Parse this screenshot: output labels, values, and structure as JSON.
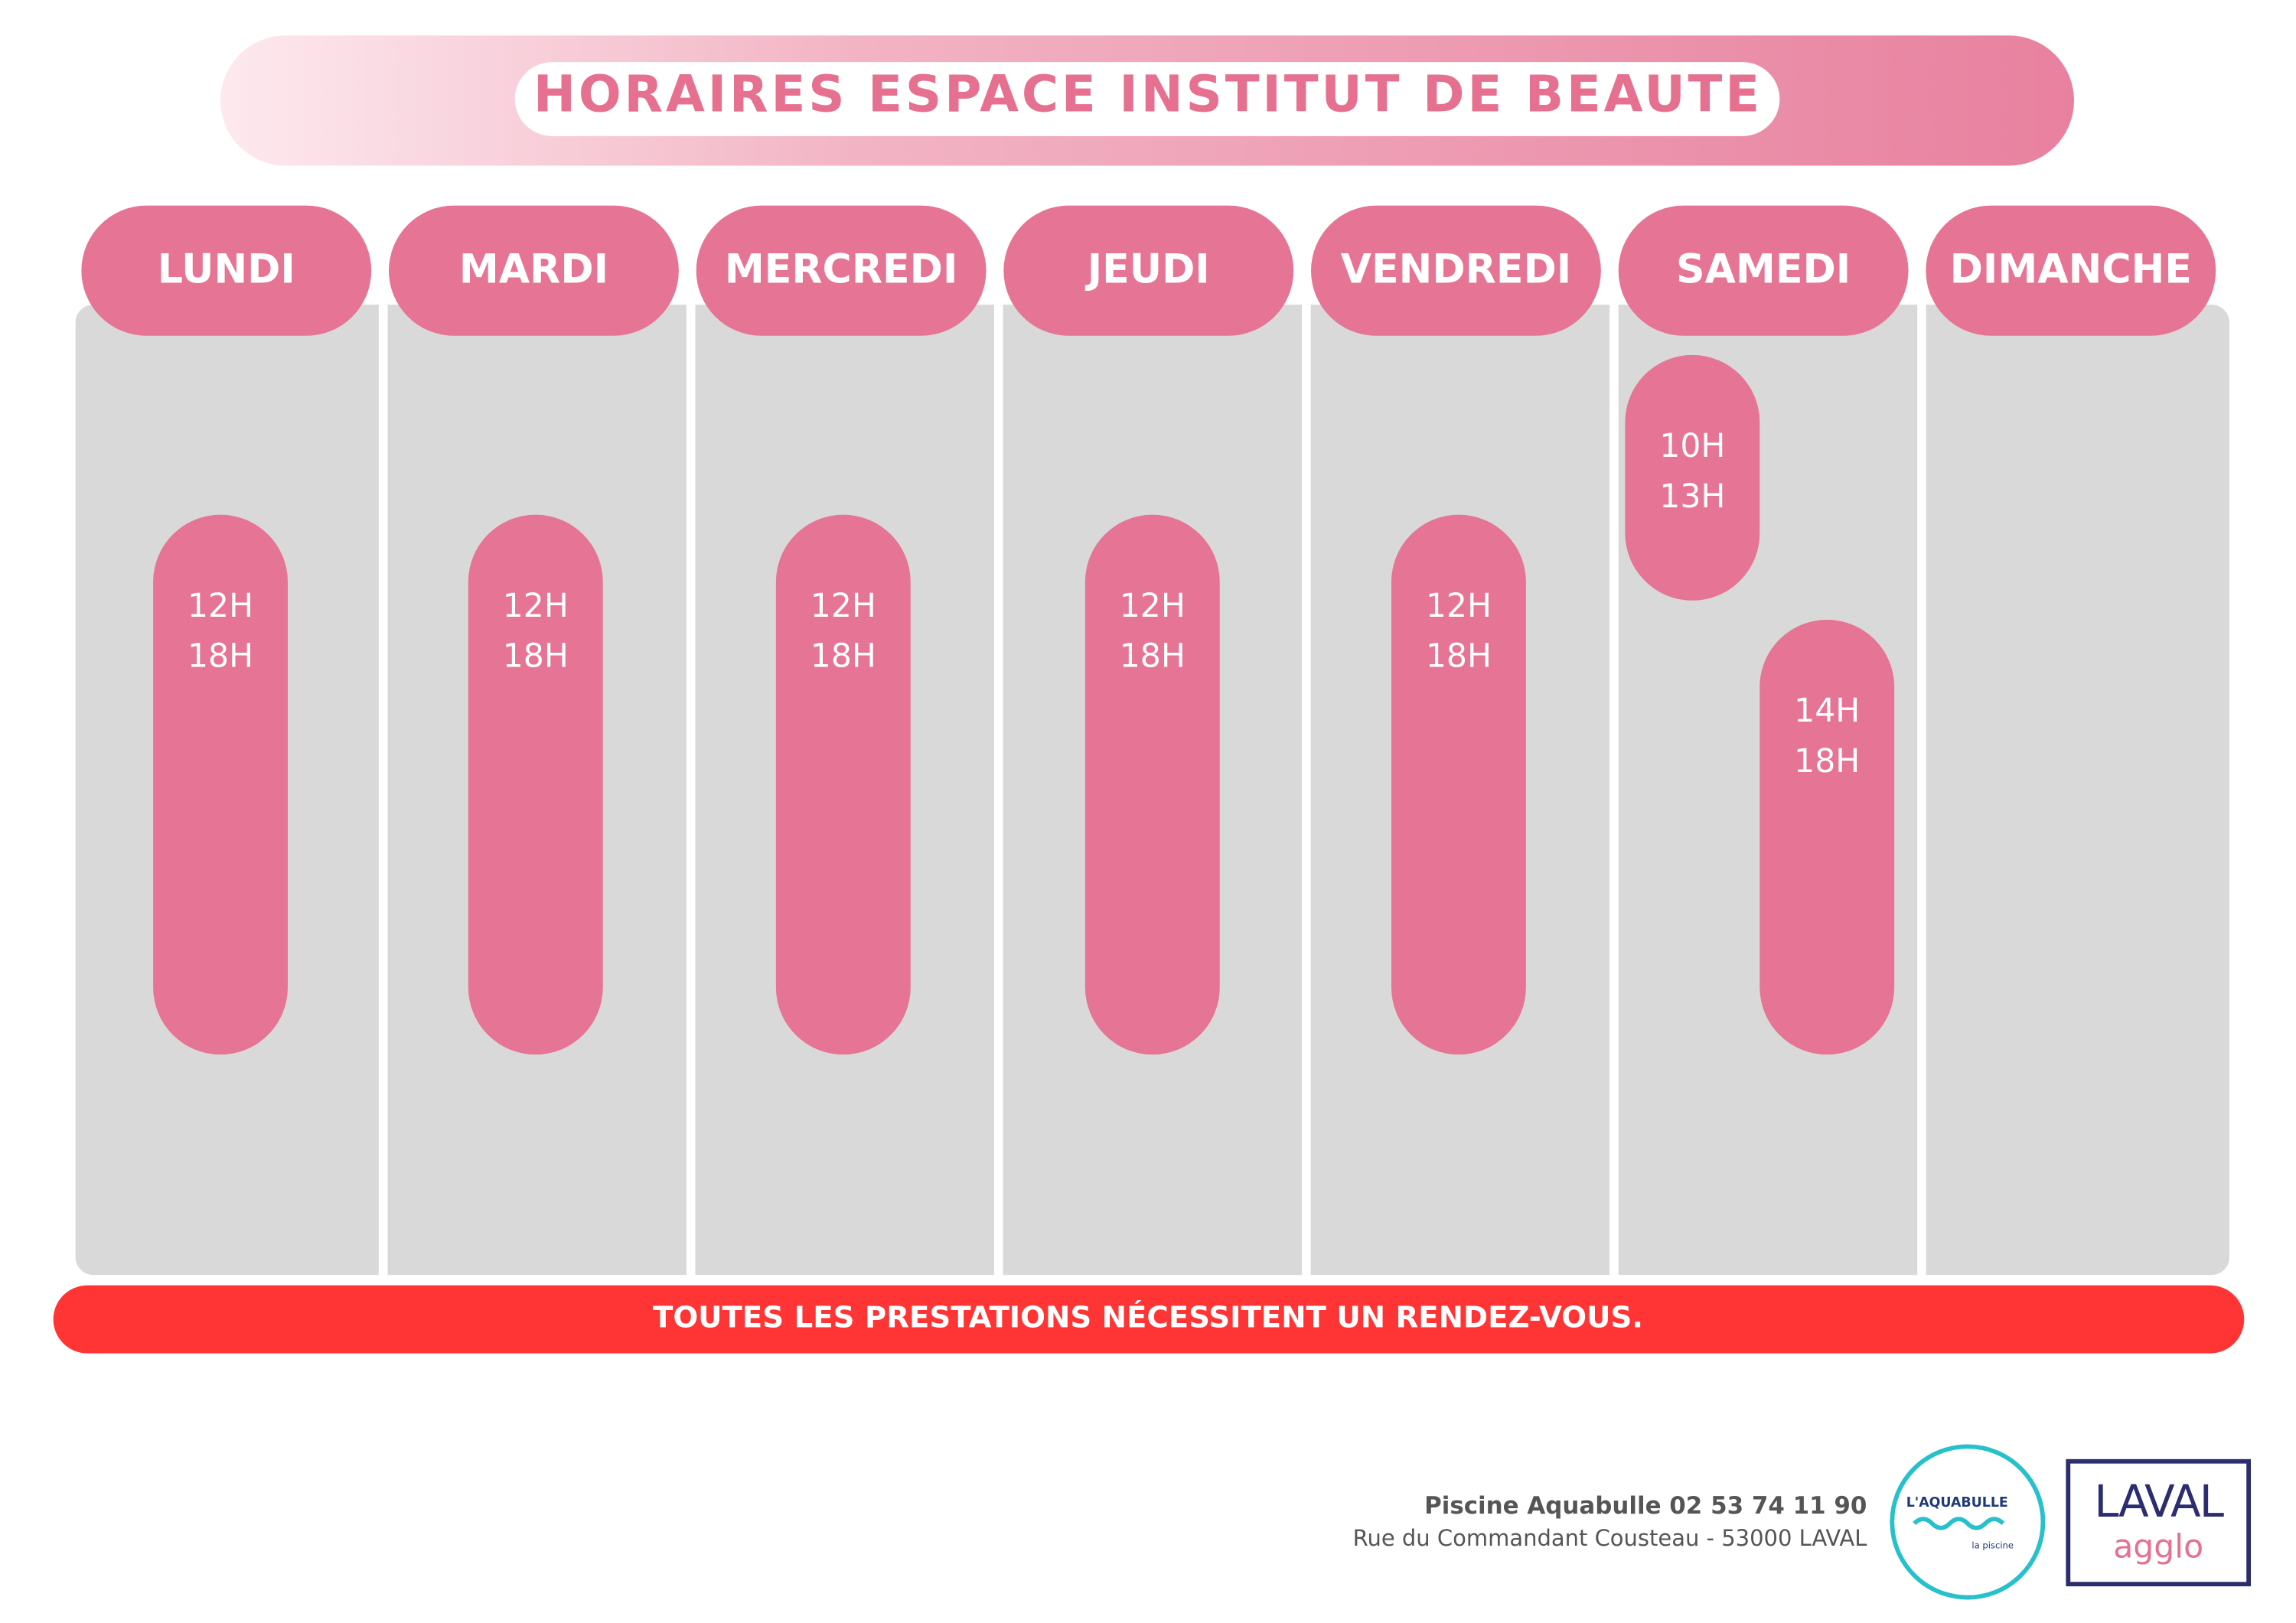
{
  "header": {
    "title": "HORAIRES ESPACE INSTITUT DE BEAUTE"
  },
  "days": [
    {
      "name": "LUNDI",
      "slots": [
        {
          "start": "12H",
          "end": "18H"
        }
      ]
    },
    {
      "name": "MARDI",
      "slots": [
        {
          "start": "12H",
          "end": "18H"
        }
      ]
    },
    {
      "name": "MERCREDI",
      "slots": [
        {
          "start": "12H",
          "end": "18H"
        }
      ]
    },
    {
      "name": "JEUDI",
      "slots": [
        {
          "start": "12H",
          "end": "18H"
        }
      ]
    },
    {
      "name": "VENDREDI",
      "slots": [
        {
          "start": "12H",
          "end": "18H"
        }
      ]
    },
    {
      "name": "SAMEDI",
      "slots": [
        {
          "start": "10H",
          "end": "13H"
        },
        {
          "start": "14H",
          "end": "18H"
        }
      ]
    },
    {
      "name": "DIMANCHE",
      "slots": []
    }
  ],
  "notice": "TOUTES LES PRESTATIONS NÉCESSITENT UN RENDEZ-VOUS.",
  "footer": {
    "line1": "Piscine Aquabulle 02 53 74 11 90",
    "line2": "Rue du Commandant Cousteau - 53000 LAVAL"
  },
  "logos": {
    "aquabulle": "L'AQUABULLE",
    "aquabulle_sub": "la piscine",
    "laval": "LAVAL",
    "laval_sub": "agglo"
  }
}
